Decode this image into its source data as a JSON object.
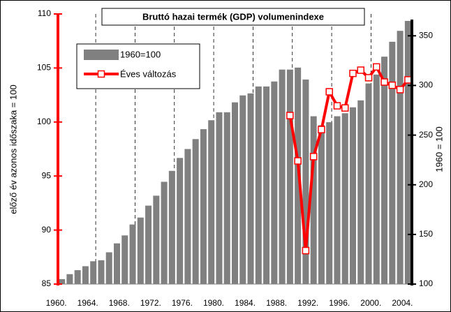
{
  "chart_data": {
    "type": "bar-line",
    "title": "Bruttó hazai termék (GDP) volumenindexe",
    "y_label": "előző év azonos időszaka = 100",
    "y2_label": "1960 = 100",
    "categories": [
      "1960.",
      null,
      null,
      null,
      "1964.",
      null,
      null,
      null,
      "1968.",
      null,
      null,
      null,
      "1972.",
      null,
      null,
      null,
      "1976.",
      null,
      null,
      null,
      "1980.",
      null,
      null,
      null,
      "1984.",
      null,
      null,
      null,
      "1988.",
      null,
      null,
      null,
      "1992.",
      null,
      null,
      null,
      "1996.",
      null,
      null,
      null,
      "2000.",
      null,
      null,
      null,
      "2004."
    ],
    "ylim": [
      85,
      110
    ],
    "yticks": [
      85,
      90,
      95,
      100,
      105,
      110
    ],
    "y2lim": [
      100,
      372
    ],
    "y2ticks": [
      100,
      150,
      200,
      250,
      300,
      350
    ],
    "series": [
      {
        "name": "1960=100",
        "color": "#808080",
        "axis": "y2",
        "kind": "bar",
        "values": [
          105,
          110,
          114,
          118,
          123,
          124,
          132,
          141,
          149,
          160,
          167,
          179,
          189,
          203,
          214,
          227,
          236,
          246,
          256,
          265,
          273,
          273,
          283,
          290,
          292,
          299,
          299,
          304,
          316,
          316,
          318,
          306,
          269,
          260,
          263,
          269,
          272,
          278,
          285,
          302,
          311,
          329,
          344,
          355,
          365
        ]
      },
      {
        "name": "Éves változás",
        "color": "#ff0000",
        "axis": "y",
        "kind": "line",
        "values": [
          null,
          null,
          null,
          null,
          null,
          null,
          null,
          null,
          null,
          null,
          null,
          null,
          null,
          null,
          null,
          null,
          null,
          null,
          null,
          null,
          null,
          null,
          null,
          null,
          null,
          null,
          null,
          null,
          null,
          100.6,
          96.4,
          88.1,
          96.8,
          99.3,
          102.8,
          101.5,
          101.3,
          104.5,
          104.8,
          104.1,
          105.1,
          103.7,
          103.4,
          103.0,
          103.9
        ]
      }
    ]
  }
}
